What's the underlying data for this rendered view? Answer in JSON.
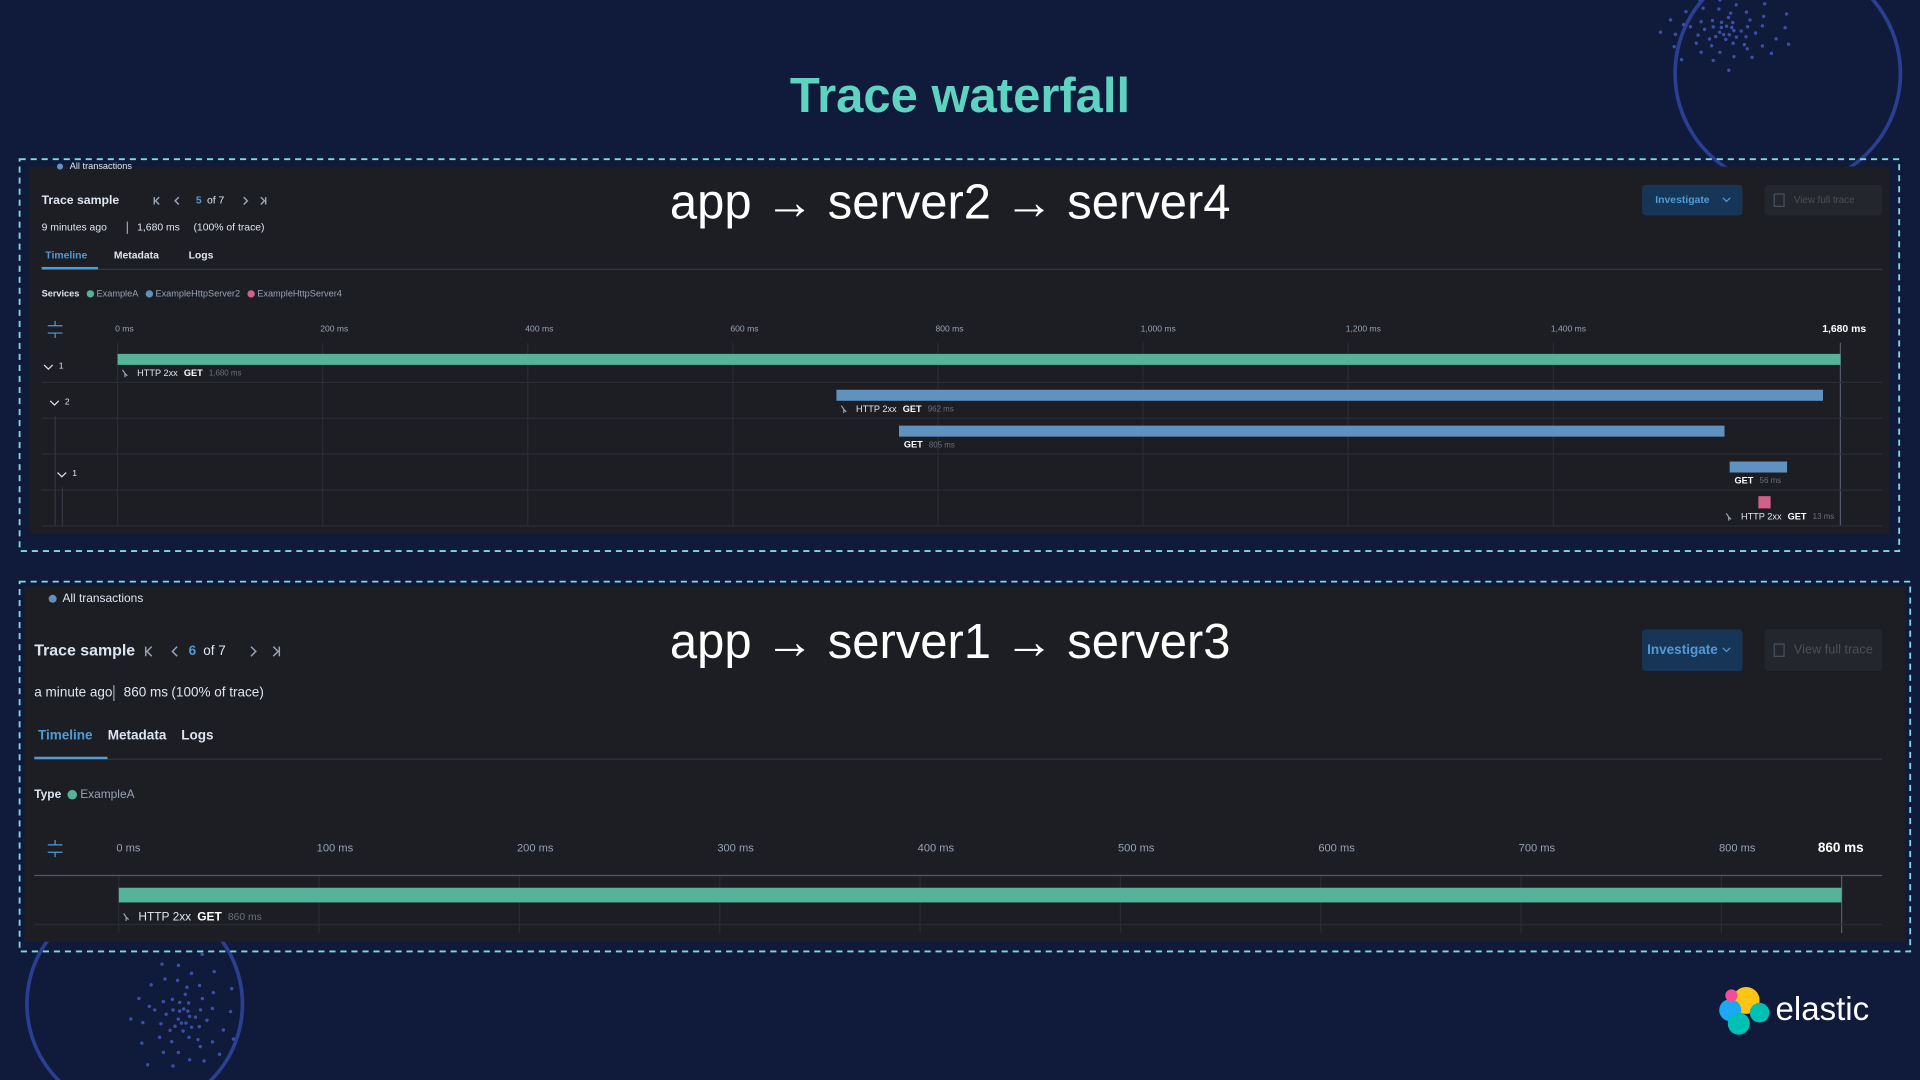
{
  "title": "Trace waterfall",
  "panels": [
    {
      "route": "app → server2 → server4",
      "scope": "All transactions",
      "trace_label": "Trace sample",
      "page": "5",
      "page_total": "of 7",
      "age": "9 minutes ago",
      "duration": "1,680 ms",
      "share": "(100% of trace)",
      "tabs": [
        "Timeline",
        "Metadata",
        "Logs"
      ],
      "actions": [
        "Investigate",
        "View full trace"
      ],
      "legend_label": "Services",
      "services": [
        {
          "name": "ExampleA",
          "color": "#54b399"
        },
        {
          "name": "ExampleHttpServer2",
          "color": "#6092c0"
        },
        {
          "name": "ExampleHttpServer4",
          "color": "#d36086"
        }
      ],
      "ticks": [
        {
          "value": 0,
          "label": "0 ms"
        },
        {
          "value": 200,
          "label": "200 ms"
        },
        {
          "value": 400,
          "label": "400 ms"
        },
        {
          "value": 600,
          "label": "600 ms"
        },
        {
          "value": 800,
          "label": "800 ms"
        },
        {
          "value": 1000,
          "label": "1,000 ms"
        },
        {
          "value": 1200,
          "label": "1,200 ms"
        },
        {
          "value": 1400,
          "label": "1,400 ms"
        }
      ],
      "axis_end": {
        "value": 1680,
        "label": "1,680 ms"
      },
      "spans": [
        {
          "toggle": "1",
          "status": "HTTP 2xx",
          "method": "GET",
          "duration": "1,680 ms",
          "start": 0,
          "length": 1680,
          "color": "#54b399"
        },
        {
          "toggle": "2",
          "status": "HTTP 2xx",
          "method": "GET",
          "duration": "962 ms",
          "start": 701,
          "length": 962,
          "color": "#6092c0"
        },
        {
          "method": "GET",
          "duration": "805 ms",
          "start": 762,
          "length": 805,
          "color": "#6092c0"
        },
        {
          "toggle": "1",
          "method": "GET",
          "duration": "56 ms",
          "start": 1572,
          "length": 56,
          "color": "#6092c0"
        },
        {
          "status": "HTTP 2xx",
          "method": "GET",
          "duration": "13 ms",
          "start": 1600,
          "length": 13,
          "color": "#d36086"
        }
      ]
    },
    {
      "route": "app → server1 → server3",
      "scope": "All transactions",
      "trace_label": "Trace sample",
      "page": "6",
      "page_total": "of 7",
      "age": "a minute ago",
      "duration": "860 ms",
      "share": "(100% of trace)",
      "tabs": [
        "Timeline",
        "Metadata",
        "Logs"
      ],
      "actions": [
        "Investigate",
        "View full trace"
      ],
      "legend_label": "Type",
      "services": [
        {
          "name": "ExampleA",
          "color": "#54b399"
        }
      ],
      "ticks": [
        {
          "value": 0,
          "label": "0 ms"
        },
        {
          "value": 100,
          "label": "100 ms"
        },
        {
          "value": 200,
          "label": "200 ms"
        },
        {
          "value": 300,
          "label": "300 ms"
        },
        {
          "value": 400,
          "label": "400 ms"
        },
        {
          "value": 500,
          "label": "500 ms"
        },
        {
          "value": 600,
          "label": "600 ms"
        },
        {
          "value": 700,
          "label": "700 ms"
        },
        {
          "value": 800,
          "label": "800 ms"
        }
      ],
      "axis_end": {
        "value": 860,
        "label": "860 ms"
      },
      "spans": [
        {
          "status": "HTTP 2xx",
          "method": "GET",
          "duration": "860 ms",
          "start": 0,
          "length": 860,
          "color": "#54b399"
        }
      ]
    }
  ],
  "logo": "elastic"
}
